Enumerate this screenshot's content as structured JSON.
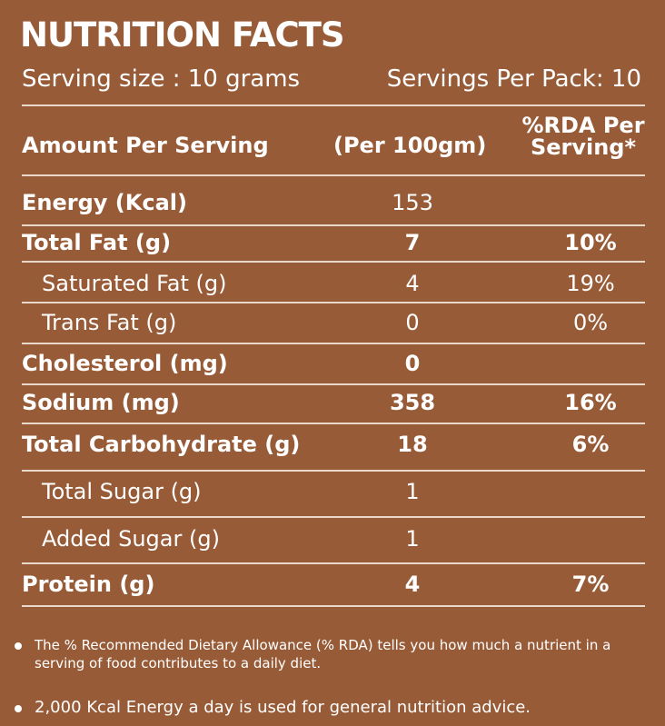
{
  "header": {
    "title": "NUTRITION FACTS",
    "serving_size": "Serving size : 10 grams",
    "servings_per_pack": "Servings Per Pack: 10"
  },
  "table": {
    "headers": {
      "amount": "Amount Per Serving",
      "per_100gm": "(Per 100gm)",
      "rda_line1": "%RDA Per",
      "rda_line2": "Serving*"
    },
    "rows": [
      {
        "label": "Energy (Kcal)",
        "value": "153",
        "rda": ""
      },
      {
        "label": "Total Fat (g)",
        "value": "7",
        "rda": "10%"
      },
      {
        "label": "Saturated Fat (g)",
        "value": "4",
        "rda": "19%"
      },
      {
        "label": "Trans Fat (g)",
        "value": "0",
        "rda": "0%"
      },
      {
        "label": "Cholesterol (mg)",
        "value": "0",
        "rda": ""
      },
      {
        "label": "Sodium  (mg)",
        "value": "358",
        "rda": "16%"
      },
      {
        "label": "Total Carbohydrate (g)",
        "value": "18",
        "rda": "6%"
      },
      {
        "label": "Total Sugar (g)",
        "value": "1",
        "rda": ""
      },
      {
        "label": "Added Sugar (g)",
        "value": "1",
        "rda": ""
      },
      {
        "label": "Protein (g)",
        "value": "4",
        "rda": "7%"
      }
    ]
  },
  "notes": [
    "The % Recommended Dietary Allowance (% RDA) tells you how much a nutrient in a serving of food contributes to a daily diet.",
    "2,000 Kcal Energy a day is used for general nutrition advice."
  ],
  "colors": {
    "background": "#985b37",
    "text": "#ffffff",
    "rule": "#f3e6dc"
  }
}
